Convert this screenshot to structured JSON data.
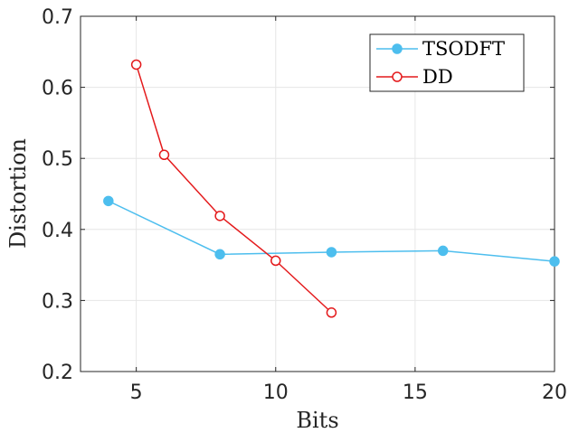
{
  "chart_data": {
    "type": "line",
    "xlabel": "Bits",
    "ylabel": "Distortion",
    "xlim": [
      3,
      20
    ],
    "ylim": [
      0.2,
      0.7
    ],
    "xticks": [
      5,
      10,
      15,
      20
    ],
    "yticks": [
      0.2,
      0.3,
      0.4,
      0.5,
      0.6,
      0.7
    ],
    "grid": true,
    "legend_position": "top-right",
    "series": [
      {
        "name": "TSODFT",
        "color": "#4DBEEE",
        "marker": "filled-circle",
        "x": [
          4,
          8,
          12,
          16,
          20
        ],
        "y": [
          0.44,
          0.365,
          0.368,
          0.37,
          0.355
        ]
      },
      {
        "name": "DD",
        "color": "#E41A1C",
        "marker": "open-circle",
        "x": [
          5,
          6,
          8,
          10,
          12
        ],
        "y": [
          0.632,
          0.505,
          0.419,
          0.356,
          0.283
        ]
      }
    ]
  }
}
